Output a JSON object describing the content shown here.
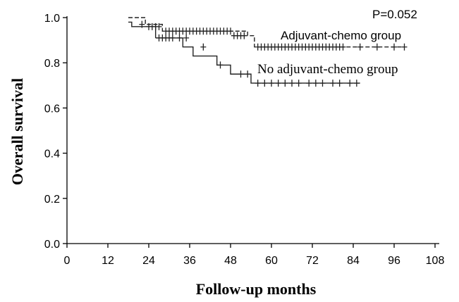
{
  "chart_data": {
    "type": "line",
    "title": "",
    "xlabel": "Follow-up months",
    "ylabel": "Overall survival",
    "xlim": [
      0,
      108
    ],
    "ylim": [
      0.0,
      1.0
    ],
    "x_ticks": [
      0,
      12,
      24,
      36,
      48,
      60,
      72,
      84,
      96,
      108
    ],
    "x_tick_labels": [
      "0",
      "12",
      "24",
      "36",
      "48",
      "60",
      "72",
      "84",
      "96",
      "108"
    ],
    "y_ticks": [
      0.0,
      0.2,
      0.4,
      0.6,
      0.8,
      1.0
    ],
    "y_tick_labels": [
      "0.0",
      "0.2",
      "0.4",
      "0.6",
      "0.8",
      "1.0"
    ],
    "grid": false,
    "annotations": [
      {
        "text": "P=0.052"
      },
      {
        "text": "Adjuvant-chemo group"
      },
      {
        "text": "No adjuvant-chemo group"
      }
    ],
    "series": [
      {
        "name": "Adjuvant-chemo group",
        "style": "dashed",
        "color": "#222222",
        "steps": [
          {
            "x": 18,
            "y": 1.0
          },
          {
            "x": 23,
            "y": 0.97
          },
          {
            "x": 28,
            "y": 0.94
          },
          {
            "x": 53,
            "y": 0.92
          },
          {
            "x": 55,
            "y": 0.87
          },
          {
            "x": 99,
            "y": 0.87
          }
        ],
        "censored": [
          {
            "x": 22,
            "y": 0.97
          },
          {
            "x": 24,
            "y": 0.96
          },
          {
            "x": 25,
            "y": 0.96
          },
          {
            "x": 26,
            "y": 0.96
          },
          {
            "x": 27,
            "y": 0.96
          },
          {
            "x": 29,
            "y": 0.94
          },
          {
            "x": 30,
            "y": 0.94
          },
          {
            "x": 31,
            "y": 0.94
          },
          {
            "x": 32,
            "y": 0.94
          },
          {
            "x": 33,
            "y": 0.94
          },
          {
            "x": 34,
            "y": 0.94
          },
          {
            "x": 35,
            "y": 0.94
          },
          {
            "x": 36,
            "y": 0.94
          },
          {
            "x": 37,
            "y": 0.94
          },
          {
            "x": 38,
            "y": 0.94
          },
          {
            "x": 39,
            "y": 0.94
          },
          {
            "x": 40,
            "y": 0.94
          },
          {
            "x": 41,
            "y": 0.94
          },
          {
            "x": 42,
            "y": 0.94
          },
          {
            "x": 43,
            "y": 0.94
          },
          {
            "x": 44,
            "y": 0.94
          },
          {
            "x": 45,
            "y": 0.94
          },
          {
            "x": 46,
            "y": 0.94
          },
          {
            "x": 47,
            "y": 0.94
          },
          {
            "x": 48,
            "y": 0.94
          },
          {
            "x": 49,
            "y": 0.92
          },
          {
            "x": 50,
            "y": 0.92
          },
          {
            "x": 51,
            "y": 0.92
          },
          {
            "x": 52,
            "y": 0.92
          },
          {
            "x": 56,
            "y": 0.87
          },
          {
            "x": 57,
            "y": 0.87
          },
          {
            "x": 58,
            "y": 0.87
          },
          {
            "x": 59,
            "y": 0.87
          },
          {
            "x": 60,
            "y": 0.87
          },
          {
            "x": 61,
            "y": 0.87
          },
          {
            "x": 62,
            "y": 0.87
          },
          {
            "x": 63,
            "y": 0.87
          },
          {
            "x": 64,
            "y": 0.87
          },
          {
            "x": 65,
            "y": 0.87
          },
          {
            "x": 66,
            "y": 0.87
          },
          {
            "x": 67,
            "y": 0.87
          },
          {
            "x": 68,
            "y": 0.87
          },
          {
            "x": 69,
            "y": 0.87
          },
          {
            "x": 70,
            "y": 0.87
          },
          {
            "x": 71,
            "y": 0.87
          },
          {
            "x": 72,
            "y": 0.87
          },
          {
            "x": 73,
            "y": 0.87
          },
          {
            "x": 74,
            "y": 0.87
          },
          {
            "x": 75,
            "y": 0.87
          },
          {
            "x": 76,
            "y": 0.87
          },
          {
            "x": 77,
            "y": 0.87
          },
          {
            "x": 78,
            "y": 0.87
          },
          {
            "x": 79,
            "y": 0.87
          },
          {
            "x": 80,
            "y": 0.87
          },
          {
            "x": 81,
            "y": 0.87
          },
          {
            "x": 86,
            "y": 0.87
          },
          {
            "x": 91,
            "y": 0.87
          },
          {
            "x": 96,
            "y": 0.87
          },
          {
            "x": 99,
            "y": 0.87
          }
        ]
      },
      {
        "name": "No adjuvant-chemo group",
        "style": "solid",
        "color": "#222222",
        "steps": [
          {
            "x": 18,
            "y": 0.98
          },
          {
            "x": 19,
            "y": 0.96
          },
          {
            "x": 26,
            "y": 0.91
          },
          {
            "x": 42,
            "y": 0.91
          },
          {
            "x": 43,
            "y": 0.91
          }
        ],
        "steps_extra": [],
        "censored": [
          {
            "x": 27,
            "y": 0.91
          },
          {
            "x": 28,
            "y": 0.91
          },
          {
            "x": 29,
            "y": 0.91
          },
          {
            "x": 30,
            "y": 0.91
          },
          {
            "x": 31,
            "y": 0.91
          },
          {
            "x": 33,
            "y": 0.91
          },
          {
            "x": 35,
            "y": 0.91
          },
          {
            "x": 40,
            "y": 0.87
          },
          {
            "x": 45,
            "y": 0.79
          },
          {
            "x": 51,
            "y": 0.75
          },
          {
            "x": 53,
            "y": 0.75
          },
          {
            "x": 56,
            "y": 0.71
          },
          {
            "x": 58,
            "y": 0.71
          },
          {
            "x": 60,
            "y": 0.71
          },
          {
            "x": 62,
            "y": 0.71
          },
          {
            "x": 64,
            "y": 0.71
          },
          {
            "x": 66,
            "y": 0.71
          },
          {
            "x": 68,
            "y": 0.71
          },
          {
            "x": 71,
            "y": 0.71
          },
          {
            "x": 73,
            "y": 0.71
          },
          {
            "x": 75,
            "y": 0.71
          },
          {
            "x": 78,
            "y": 0.71
          },
          {
            "x": 80,
            "y": 0.71
          },
          {
            "x": 83,
            "y": 0.71
          },
          {
            "x": 85,
            "y": 0.71
          }
        ]
      }
    ]
  }
}
